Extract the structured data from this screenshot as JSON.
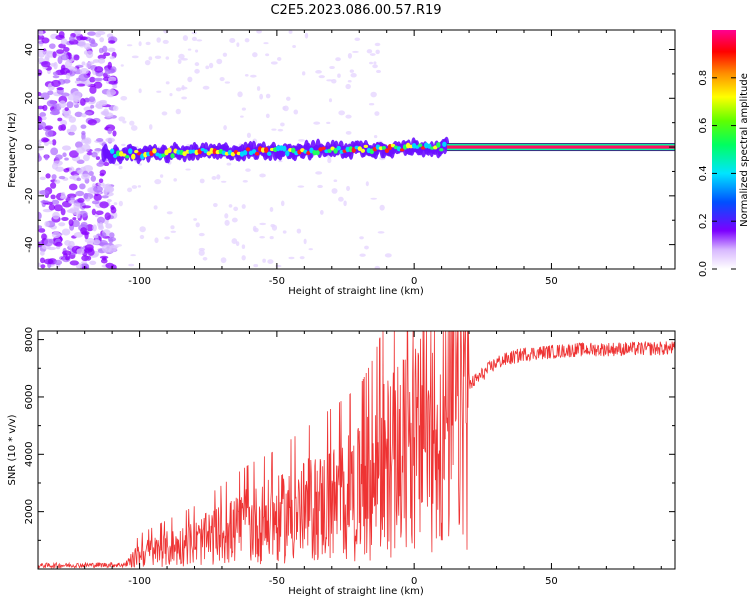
{
  "title": "C2E5.2023.086.00.57.R19",
  "chart_data": [
    {
      "type": "heatmap",
      "xlabel": "Height of straight line (km)",
      "ylabel": "Frequency (Hz)",
      "xlim": [
        -137,
        95
      ],
      "ylim": [
        -50,
        48
      ],
      "xticks": [
        -100,
        -50,
        0,
        50
      ],
      "yticks": [
        -40,
        -20,
        0,
        20,
        40
      ],
      "colorbar": {
        "label": "Normalized spectral amplitude",
        "range": [
          0,
          1
        ],
        "ticks": [
          0.0,
          0.2,
          0.4,
          0.6,
          0.8
        ],
        "colors": [
          "#ffffff",
          "#7c00ff",
          "#0050ff",
          "#00e5ff",
          "#00ff40",
          "#ffff00",
          "#ff8c00",
          "#ff0000",
          "#ff0090"
        ]
      },
      "ridge_segments": [
        {
          "x0": -113,
          "x1": 12,
          "f0": -3,
          "f1": 0
        },
        {
          "x0": 12,
          "x1": 95,
          "f0": 0,
          "f1": 0
        }
      ]
    },
    {
      "type": "line",
      "xlabel": "Height of straight line (km)",
      "ylabel": "SNR (10 * v/v)",
      "xlim": [
        -137,
        95
      ],
      "ylim": [
        0,
        8300
      ],
      "xticks": [
        -100,
        -50,
        0,
        50
      ],
      "yticks": [
        2000,
        4000,
        6000,
        8000
      ],
      "line_color": "#ee3333",
      "trend": [
        {
          "x": -137,
          "y": 120
        },
        {
          "x": -105,
          "y": 150
        },
        {
          "x": -100,
          "y": 500
        },
        {
          "x": -90,
          "y": 700
        },
        {
          "x": -80,
          "y": 900
        },
        {
          "x": -70,
          "y": 1200
        },
        {
          "x": -60,
          "y": 1500
        },
        {
          "x": -50,
          "y": 1700
        },
        {
          "x": -40,
          "y": 2000
        },
        {
          "x": -30,
          "y": 2300
        },
        {
          "x": -20,
          "y": 2600
        },
        {
          "x": -15,
          "y": 3000
        },
        {
          "x": -10,
          "y": 3600
        },
        {
          "x": -5,
          "y": 3900
        },
        {
          "x": 0,
          "y": 4200
        },
        {
          "x": 5,
          "y": 4400
        },
        {
          "x": 10,
          "y": 4700
        },
        {
          "x": 15,
          "y": 5400
        },
        {
          "x": 20,
          "y": 6400
        },
        {
          "x": 30,
          "y": 7200
        },
        {
          "x": 40,
          "y": 7500
        },
        {
          "x": 60,
          "y": 7650
        },
        {
          "x": 95,
          "y": 7700
        }
      ]
    }
  ]
}
